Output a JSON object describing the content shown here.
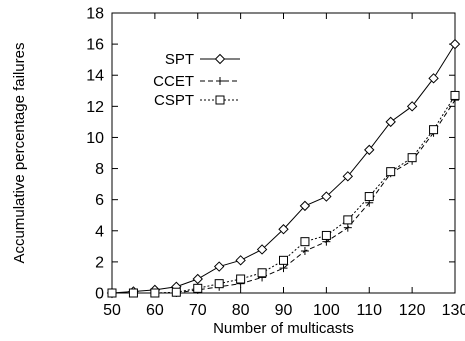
{
  "chart_data": {
    "type": "line",
    "title": "",
    "xlabel": "Number of multicasts",
    "ylabel": "Accumulative percentage failures",
    "xlim": [
      50,
      130
    ],
    "ylim": [
      0,
      18
    ],
    "xticks": [
      50,
      60,
      70,
      80,
      90,
      100,
      110,
      120,
      130
    ],
    "yticks": [
      0,
      2,
      4,
      6,
      8,
      10,
      12,
      14,
      16,
      18
    ],
    "x": [
      50,
      55,
      60,
      65,
      70,
      75,
      80,
      85,
      90,
      95,
      100,
      105,
      110,
      115,
      120,
      125,
      130
    ],
    "grid": false,
    "legend_position": "upper-left",
    "series": [
      {
        "name": "SPT",
        "marker": "diamond",
        "line": "solid",
        "values": [
          0,
          0.1,
          0.2,
          0.4,
          0.9,
          1.7,
          2.1,
          2.8,
          4.1,
          5.6,
          6.2,
          7.5,
          9.2,
          11.0,
          12.0,
          13.8,
          16.0
        ]
      },
      {
        "name": "CCET",
        "marker": "plus",
        "line": "dashed",
        "values": [
          0,
          0,
          0,
          0,
          0.2,
          0.4,
          0.6,
          1.0,
          1.6,
          2.7,
          3.3,
          4.2,
          5.8,
          7.7,
          8.5,
          10.3,
          12.4
        ]
      },
      {
        "name": "CSPT",
        "marker": "square",
        "line": "dotted",
        "values": [
          0,
          0,
          0,
          0.05,
          0.3,
          0.6,
          0.9,
          1.3,
          2.1,
          3.3,
          3.7,
          4.7,
          6.2,
          7.8,
          8.7,
          10.5,
          12.7
        ]
      }
    ]
  }
}
